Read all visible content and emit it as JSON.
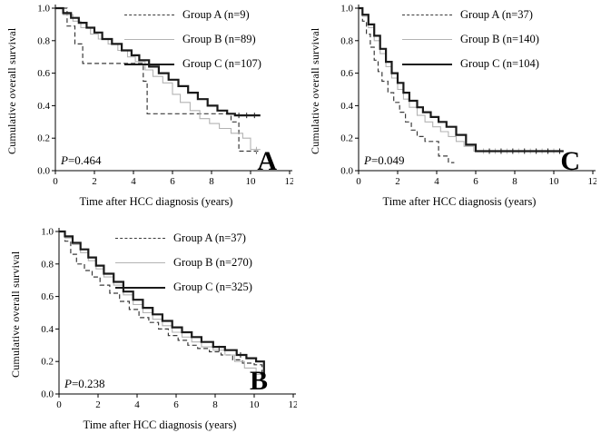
{
  "figure": {
    "background": "#ffffff",
    "axis_color": "#000000"
  },
  "chart_data": [
    {
      "type": "line",
      "subtype": "kaplan-meier-step",
      "panel_label": "A",
      "xlabel": "Time after HCC diagnosis (years)",
      "ylabel": "Cumulative overall survival",
      "xlim": [
        0,
        12
      ],
      "ylim": [
        0,
        1
      ],
      "xticks": [
        0,
        2,
        4,
        6,
        8,
        10,
        12
      ],
      "yticks": [
        "0.0",
        "0.2",
        "0.4",
        "0.6",
        "0.8",
        "1.0"
      ],
      "grid": false,
      "legend_position": "upper-right-inside",
      "p_italic": "P",
      "p_rest": "=0.464",
      "series": [
        {
          "name": "Group A (n=9)",
          "style": "dashed",
          "color": "#3a3a3a",
          "width": 1.2,
          "points": [
            [
              0,
              1.0
            ],
            [
              0.6,
              0.89
            ],
            [
              1.0,
              0.78
            ],
            [
              1.4,
              0.66
            ],
            [
              4.2,
              0.66
            ],
            [
              4.5,
              0.55
            ],
            [
              4.7,
              0.35
            ],
            [
              8.2,
              0.35
            ],
            [
              9.0,
              0.3
            ],
            [
              9.4,
              0.12
            ],
            [
              10.4,
              0.12
            ]
          ],
          "censors": [
            [
              10.3,
              0.12
            ]
          ]
        },
        {
          "name": "Group B (n=89)",
          "style": "solid-thin",
          "color": "#b3b3b3",
          "width": 1.1,
          "points": [
            [
              0,
              1.0
            ],
            [
              0.4,
              0.96
            ],
            [
              0.9,
              0.92
            ],
            [
              1.3,
              0.88
            ],
            [
              1.8,
              0.84
            ],
            [
              2.2,
              0.81
            ],
            [
              2.7,
              0.78
            ],
            [
              3.2,
              0.74
            ],
            [
              3.7,
              0.7
            ],
            [
              4.1,
              0.67
            ],
            [
              4.6,
              0.62
            ],
            [
              5.0,
              0.58
            ],
            [
              5.5,
              0.54
            ],
            [
              6.0,
              0.47
            ],
            [
              6.4,
              0.42
            ],
            [
              6.9,
              0.37
            ],
            [
              7.4,
              0.32
            ],
            [
              7.9,
              0.29
            ],
            [
              8.4,
              0.26
            ],
            [
              9.0,
              0.23
            ],
            [
              9.6,
              0.2
            ],
            [
              10.0,
              0.13
            ],
            [
              10.5,
              0.13
            ]
          ],
          "censors": [
            [
              10.3,
              0.13
            ]
          ]
        },
        {
          "name": "Group C (n=107)",
          "style": "solid-thick",
          "color": "#1a1a1a",
          "width": 2.2,
          "points": [
            [
              0,
              1.0
            ],
            [
              0.4,
              0.97
            ],
            [
              0.8,
              0.94
            ],
            [
              1.2,
              0.91
            ],
            [
              1.6,
              0.88
            ],
            [
              2.0,
              0.85
            ],
            [
              2.4,
              0.81
            ],
            [
              2.9,
              0.78
            ],
            [
              3.4,
              0.74
            ],
            [
              3.9,
              0.71
            ],
            [
              4.3,
              0.68
            ],
            [
              4.8,
              0.64
            ],
            [
              5.3,
              0.6
            ],
            [
              5.8,
              0.56
            ],
            [
              6.3,
              0.52
            ],
            [
              6.8,
              0.48
            ],
            [
              7.3,
              0.44
            ],
            [
              7.8,
              0.4
            ],
            [
              8.3,
              0.37
            ],
            [
              8.8,
              0.35
            ],
            [
              9.2,
              0.34
            ],
            [
              10.5,
              0.34
            ]
          ],
          "censors": [
            [
              9.4,
              0.34
            ],
            [
              9.8,
              0.34
            ],
            [
              10.2,
              0.34
            ]
          ]
        }
      ]
    },
    {
      "type": "line",
      "subtype": "kaplan-meier-step",
      "panel_label": "C",
      "xlabel": "Time after HCC diagnosis (years)",
      "ylabel": "Cumulative overall survival",
      "xlim": [
        0,
        12
      ],
      "ylim": [
        0,
        1
      ],
      "xticks": [
        0,
        2,
        4,
        6,
        8,
        10,
        12
      ],
      "yticks": [
        "0.0",
        "0.2",
        "0.4",
        "0.6",
        "0.8",
        "1.0"
      ],
      "grid": false,
      "legend_position": "upper-right-inside",
      "p_italic": "P",
      "p_rest": "=0.049",
      "series": [
        {
          "name": "Group A (n=37)",
          "style": "dashed",
          "color": "#3a3a3a",
          "width": 1.2,
          "points": [
            [
              0,
              1.0
            ],
            [
              0.2,
              0.92
            ],
            [
              0.4,
              0.84
            ],
            [
              0.6,
              0.76
            ],
            [
              0.8,
              0.68
            ],
            [
              1.0,
              0.61
            ],
            [
              1.2,
              0.55
            ],
            [
              1.5,
              0.48
            ],
            [
              1.8,
              0.42
            ],
            [
              2.1,
              0.36
            ],
            [
              2.4,
              0.3
            ],
            [
              2.7,
              0.25
            ],
            [
              3.0,
              0.21
            ],
            [
              3.4,
              0.18
            ],
            [
              3.8,
              0.18
            ],
            [
              4.1,
              0.09
            ],
            [
              4.6,
              0.05
            ],
            [
              4.9,
              0.05
            ]
          ],
          "censors": []
        },
        {
          "name": "Group B (n=140)",
          "style": "solid-thin",
          "color": "#b3b3b3",
          "width": 1.1,
          "points": [
            [
              0,
              1.0
            ],
            [
              0.2,
              0.95
            ],
            [
              0.5,
              0.88
            ],
            [
              0.8,
              0.8
            ],
            [
              1.1,
              0.72
            ],
            [
              1.4,
              0.64
            ],
            [
              1.7,
              0.57
            ],
            [
              2.0,
              0.5
            ],
            [
              2.3,
              0.44
            ],
            [
              2.6,
              0.39
            ],
            [
              3.0,
              0.34
            ],
            [
              3.4,
              0.3
            ],
            [
              3.8,
              0.27
            ],
            [
              4.2,
              0.24
            ],
            [
              4.6,
              0.21
            ],
            [
              5.0,
              0.18
            ],
            [
              5.4,
              0.15
            ],
            [
              5.9,
              0.12
            ],
            [
              10.5,
              0.12
            ]
          ],
          "censors": [
            [
              6.4,
              0.12
            ],
            [
              7.0,
              0.12
            ],
            [
              7.6,
              0.12
            ],
            [
              8.2,
              0.12
            ],
            [
              8.8,
              0.12
            ],
            [
              9.4,
              0.12
            ],
            [
              10.0,
              0.12
            ]
          ]
        },
        {
          "name": "Group C (n=104)",
          "style": "solid-thick",
          "color": "#1a1a1a",
          "width": 2.2,
          "points": [
            [
              0,
              1.0
            ],
            [
              0.2,
              0.96
            ],
            [
              0.5,
              0.9
            ],
            [
              0.8,
              0.83
            ],
            [
              1.1,
              0.75
            ],
            [
              1.4,
              0.67
            ],
            [
              1.7,
              0.6
            ],
            [
              2.0,
              0.54
            ],
            [
              2.3,
              0.48
            ],
            [
              2.6,
              0.43
            ],
            [
              3.0,
              0.39
            ],
            [
              3.3,
              0.36
            ],
            [
              3.7,
              0.33
            ],
            [
              4.1,
              0.3
            ],
            [
              4.5,
              0.27
            ],
            [
              5.0,
              0.22
            ],
            [
              5.5,
              0.16
            ],
            [
              6.0,
              0.12
            ],
            [
              10.5,
              0.12
            ]
          ],
          "censors": [
            [
              6.7,
              0.12
            ],
            [
              7.3,
              0.12
            ],
            [
              7.9,
              0.12
            ],
            [
              8.5,
              0.12
            ],
            [
              9.1,
              0.12
            ],
            [
              9.7,
              0.12
            ],
            [
              10.3,
              0.12
            ]
          ]
        }
      ]
    },
    {
      "type": "line",
      "subtype": "kaplan-meier-step",
      "panel_label": "B",
      "xlabel": "Time after HCC diagnosis (years)",
      "ylabel": "Cumulative overall survival",
      "xlim": [
        0,
        12
      ],
      "ylim": [
        0,
        1
      ],
      "xticks": [
        0,
        2,
        4,
        6,
        8,
        10,
        12
      ],
      "yticks": [
        "0.0",
        "0.2",
        "0.4",
        "0.6",
        "0.8",
        "1.0"
      ],
      "grid": false,
      "legend_position": "upper-right-inside",
      "p_italic": "P",
      "p_rest": "=0.238",
      "series": [
        {
          "name": "Group A (n=37)",
          "style": "dashed",
          "color": "#3a3a3a",
          "width": 1.2,
          "points": [
            [
              0,
              1.0
            ],
            [
              0.3,
              0.94
            ],
            [
              0.6,
              0.86
            ],
            [
              0.9,
              0.8
            ],
            [
              1.3,
              0.76
            ],
            [
              1.7,
              0.72
            ],
            [
              2.1,
              0.67
            ],
            [
              2.6,
              0.62
            ],
            [
              3.1,
              0.57
            ],
            [
              3.6,
              0.52
            ],
            [
              4.1,
              0.47
            ],
            [
              4.6,
              0.44
            ],
            [
              5.1,
              0.4
            ],
            [
              5.6,
              0.36
            ],
            [
              6.1,
              0.33
            ],
            [
              6.6,
              0.3
            ],
            [
              7.1,
              0.28
            ],
            [
              7.7,
              0.26
            ],
            [
              8.3,
              0.24
            ],
            [
              8.9,
              0.21
            ],
            [
              9.4,
              0.19
            ],
            [
              10.0,
              0.18
            ],
            [
              10.4,
              0.1
            ]
          ],
          "censors": []
        },
        {
          "name": "Group B (n=270)",
          "style": "solid-thin",
          "color": "#b3b3b3",
          "width": 1.1,
          "points": [
            [
              0,
              1.0
            ],
            [
              0.3,
              0.96
            ],
            [
              0.7,
              0.92
            ],
            [
              1.1,
              0.87
            ],
            [
              1.5,
              0.82
            ],
            [
              1.9,
              0.77
            ],
            [
              2.3,
              0.72
            ],
            [
              2.8,
              0.67
            ],
            [
              3.3,
              0.61
            ],
            [
              3.8,
              0.55
            ],
            [
              4.3,
              0.5
            ],
            [
              4.8,
              0.46
            ],
            [
              5.3,
              0.42
            ],
            [
              5.8,
              0.38
            ],
            [
              6.3,
              0.35
            ],
            [
              6.8,
              0.32
            ],
            [
              7.3,
              0.29
            ],
            [
              7.9,
              0.27
            ],
            [
              8.5,
              0.24
            ],
            [
              9.0,
              0.2
            ],
            [
              9.5,
              0.16
            ],
            [
              10.1,
              0.12
            ],
            [
              10.5,
              0.1
            ]
          ],
          "censors": []
        },
        {
          "name": "Group C (n=325)",
          "style": "solid-thick",
          "color": "#1a1a1a",
          "width": 2.2,
          "points": [
            [
              0,
              1.0
            ],
            [
              0.3,
              0.97
            ],
            [
              0.7,
              0.93
            ],
            [
              1.1,
              0.89
            ],
            [
              1.5,
              0.84
            ],
            [
              1.9,
              0.79
            ],
            [
              2.3,
              0.74
            ],
            [
              2.8,
              0.69
            ],
            [
              3.3,
              0.63
            ],
            [
              3.8,
              0.58
            ],
            [
              4.3,
              0.53
            ],
            [
              4.8,
              0.49
            ],
            [
              5.3,
              0.45
            ],
            [
              5.8,
              0.41
            ],
            [
              6.3,
              0.38
            ],
            [
              6.8,
              0.35
            ],
            [
              7.3,
              0.32
            ],
            [
              7.9,
              0.29
            ],
            [
              8.5,
              0.27
            ],
            [
              9.1,
              0.24
            ],
            [
              9.6,
              0.22
            ],
            [
              10.1,
              0.2
            ],
            [
              10.5,
              0.12
            ]
          ],
          "censors": [
            [
              8.2,
              0.28
            ],
            [
              9.3,
              0.24
            ]
          ]
        }
      ]
    }
  ]
}
